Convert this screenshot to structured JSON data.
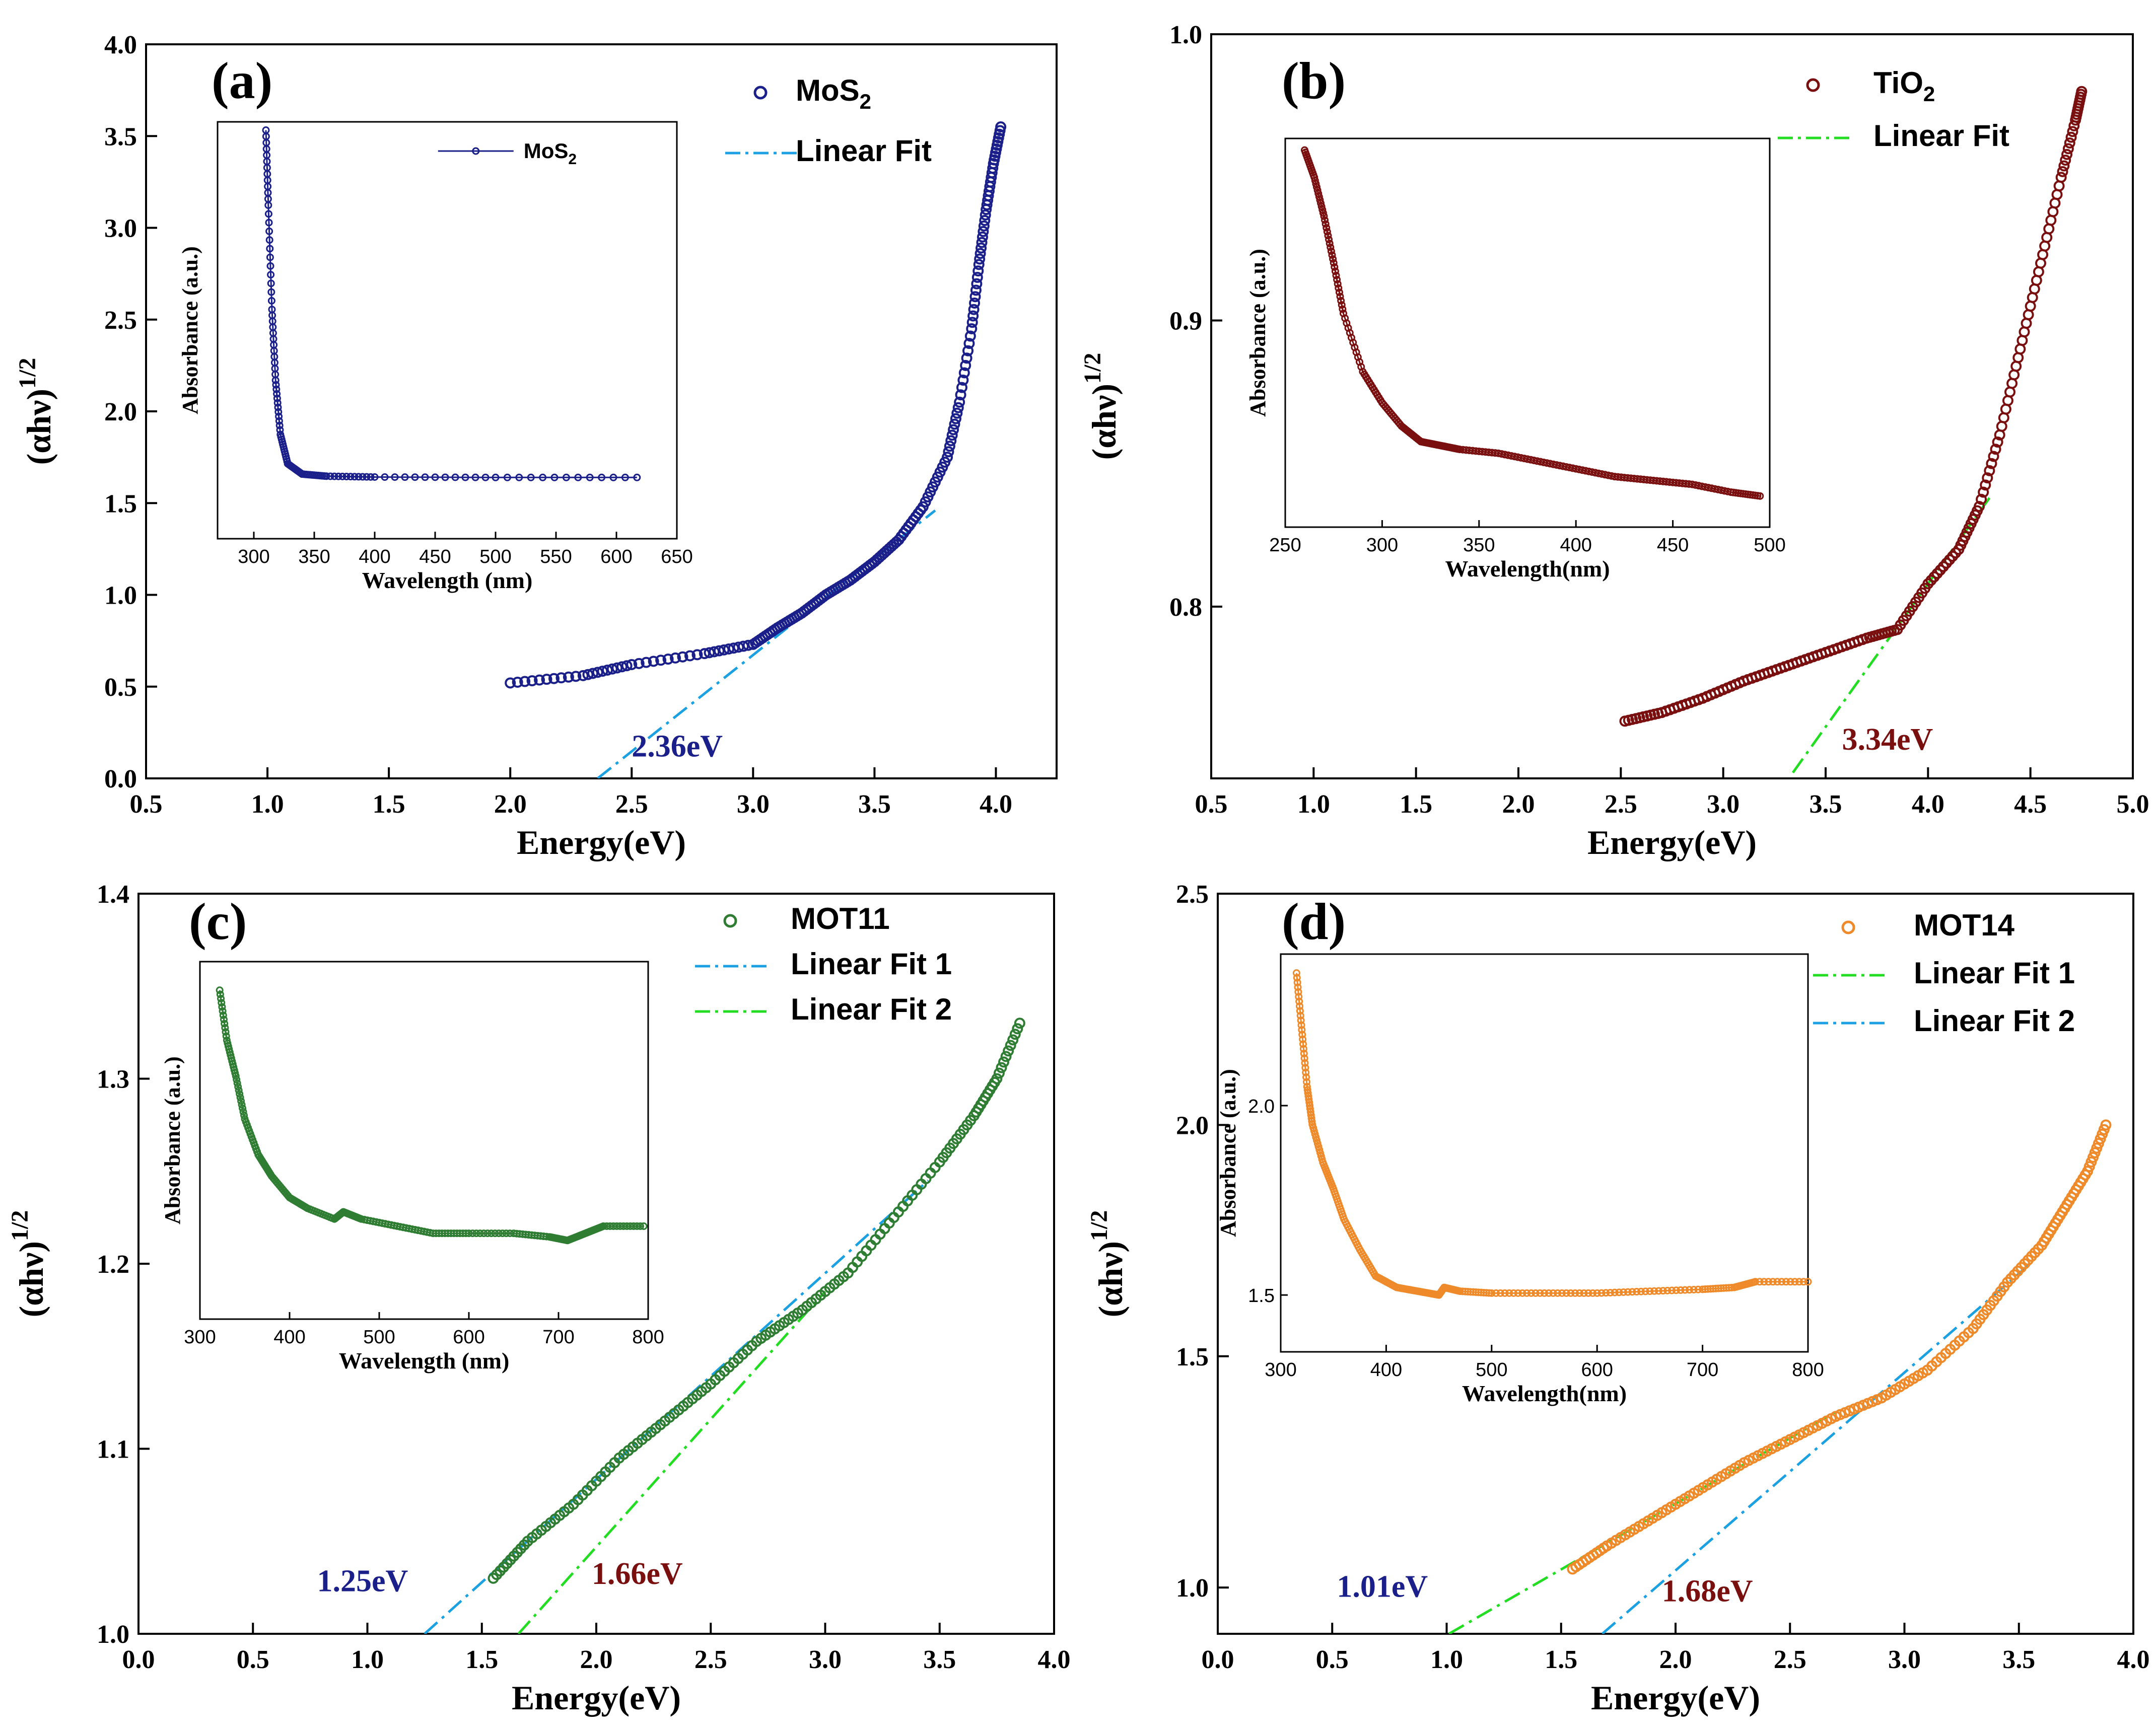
{
  "colors": {
    "mos2": "#1a1f8a",
    "tio2": "#7a0f0f",
    "mot11": "#2e7d32",
    "mot14": "#ef8a2a",
    "fit_blue": "#1ba1e2",
    "fit_green": "#22dd22",
    "annot_blue": "#1a1f8a",
    "annot_red": "#7a0f0f"
  },
  "chart_data": [
    {
      "id": "a",
      "type": "scatter",
      "panel_label": "(a)",
      "xlabel": "Energy(eV)",
      "ylabel_main": "(αhν)",
      "ylabel_sup": "1/2",
      "xlim": [
        0.5,
        4.25
      ],
      "ylim": [
        0.0,
        4.0
      ],
      "xticks": [
        "0.5",
        "1.0",
        "1.5",
        "2.0",
        "2.5",
        "3.0",
        "3.5",
        "4.0"
      ],
      "yticks": [
        "0.0",
        "0.5",
        "1.0",
        "1.5",
        "2.0",
        "2.5",
        "3.0",
        "3.5",
        "4.0"
      ],
      "legend": [
        {
          "label": "MoS",
          "sub": "2",
          "kind": "marker",
          "color": "mos2"
        },
        {
          "label": "Linear Fit",
          "kind": "dashdot",
          "color": "fit_blue"
        }
      ],
      "series": [
        {
          "name": "MoS2",
          "color": "mos2",
          "x": [
            2.0,
            2.3,
            2.5,
            2.8,
            3.0,
            3.1,
            3.2,
            3.3,
            3.4,
            3.5,
            3.6,
            3.7,
            3.8,
            3.85,
            3.9,
            3.93,
            3.96,
            3.99,
            4.02
          ],
          "y": [
            0.52,
            0.56,
            0.62,
            0.68,
            0.73,
            0.82,
            0.9,
            1.0,
            1.08,
            1.18,
            1.3,
            1.48,
            1.75,
            2.05,
            2.45,
            2.8,
            3.1,
            3.35,
            3.55
          ]
        }
      ],
      "fits": [
        {
          "name": "Linear Fit",
          "color": "fit_blue",
          "x": [
            2.36,
            3.75
          ],
          "y": [
            0.0,
            1.46
          ]
        }
      ],
      "annotations": [
        {
          "text": "2.36eV",
          "x": 2.5,
          "y": 0.12,
          "color": "annot_blue"
        }
      ],
      "inset": {
        "xlabel": "Wavelength (nm)",
        "ylabel": "Absorbance (a.u.)",
        "xlim": [
          270,
          650
        ],
        "ylim": [
          0,
          1
        ],
        "xticks": [
          "300",
          "350",
          "400",
          "450",
          "500",
          "550",
          "600",
          "650"
        ],
        "legend": {
          "label": "MoS",
          "sub": "2",
          "color": "mos2"
        },
        "series": {
          "x": [
            310,
            312,
            315,
            318,
            322,
            328,
            340,
            360,
            400,
            500,
            617
          ],
          "y": [
            0.98,
            0.8,
            0.55,
            0.38,
            0.25,
            0.18,
            0.155,
            0.15,
            0.148,
            0.147,
            0.147
          ]
        }
      }
    },
    {
      "id": "b",
      "type": "scatter",
      "panel_label": "(b)",
      "xlabel": "Energy(eV)",
      "ylabel_main": "(αhν)",
      "ylabel_sup": "1/2",
      "xlim": [
        0.5,
        5.0
      ],
      "ylim": [
        0.74,
        1.0
      ],
      "xticks": [
        "0.5",
        "1.0",
        "1.5",
        "2.0",
        "2.5",
        "3.0",
        "3.5",
        "4.0",
        "4.5",
        "5.0"
      ],
      "yticks": [
        "0.8",
        "0.9",
        "1.0"
      ],
      "legend": [
        {
          "label": "TiO",
          "sub": "2",
          "kind": "marker",
          "color": "tio2"
        },
        {
          "label": "Linear Fit",
          "kind": "dashdot",
          "color": "fit_green"
        }
      ],
      "series": [
        {
          "name": "TiO2",
          "color": "tio2",
          "x": [
            2.52,
            2.7,
            2.9,
            3.1,
            3.3,
            3.5,
            3.7,
            3.85,
            4.0,
            4.15,
            4.25,
            4.35,
            4.45,
            4.55,
            4.65,
            4.72,
            4.75
          ],
          "y": [
            0.76,
            0.763,
            0.768,
            0.774,
            0.779,
            0.784,
            0.789,
            0.792,
            0.808,
            0.82,
            0.835,
            0.86,
            0.89,
            0.92,
            0.95,
            0.97,
            0.98
          ]
        }
      ],
      "fits": [
        {
          "name": "Linear Fit",
          "color": "fit_green",
          "x": [
            3.34,
            4.3
          ],
          "y": [
            0.742,
            0.838
          ]
        }
      ],
      "annotations": [
        {
          "text": "3.34eV",
          "x": 3.58,
          "y": 0.75,
          "color": "annot_red"
        }
      ],
      "inset": {
        "xlabel": "Wavelength(nm)",
        "ylabel": "Absorbance (a.u.)",
        "xlim": [
          250,
          500
        ],
        "ylim": [
          0,
          1
        ],
        "xticks": [
          "250",
          "300",
          "350",
          "400",
          "450",
          "500"
        ],
        "legend": null,
        "series": {
          "x": [
            260,
            265,
            270,
            275,
            280,
            290,
            300,
            310,
            320,
            330,
            340,
            360,
            380,
            400,
            420,
            440,
            460,
            480,
            495
          ],
          "y": [
            0.97,
            0.9,
            0.8,
            0.68,
            0.55,
            0.4,
            0.32,
            0.26,
            0.22,
            0.21,
            0.2,
            0.19,
            0.17,
            0.15,
            0.13,
            0.12,
            0.11,
            0.09,
            0.08
          ]
        }
      }
    },
    {
      "id": "c",
      "type": "scatter",
      "panel_label": "(c)",
      "xlabel": "Energy(eV)",
      "ylabel_main": "(αhν)",
      "ylabel_sup": "1/2",
      "xlim": [
        0.0,
        4.0
      ],
      "ylim": [
        1.0,
        1.4
      ],
      "xticks": [
        "0.0",
        "0.5",
        "1.0",
        "1.5",
        "2.0",
        "2.5",
        "3.0",
        "3.5",
        "4.0"
      ],
      "yticks": [
        "1.0",
        "1.1",
        "1.2",
        "1.3",
        "1.4"
      ],
      "legend": [
        {
          "label": "MOT11",
          "kind": "marker",
          "color": "mot11"
        },
        {
          "label": "Linear Fit 1",
          "kind": "dashdot",
          "color": "fit_blue"
        },
        {
          "label": "Linear Fit 2",
          "kind": "dashdot",
          "color": "fit_green"
        }
      ],
      "series": [
        {
          "name": "MOT11",
          "color": "mot11",
          "x": [
            1.55,
            1.7,
            1.9,
            2.1,
            2.3,
            2.5,
            2.7,
            2.9,
            3.1,
            3.3,
            3.5,
            3.65,
            3.75,
            3.85
          ],
          "y": [
            1.03,
            1.05,
            1.07,
            1.095,
            1.115,
            1.135,
            1.158,
            1.175,
            1.195,
            1.225,
            1.255,
            1.28,
            1.3,
            1.33
          ]
        }
      ],
      "fits": [
        {
          "name": "Linear Fit 1",
          "color": "fit_blue",
          "x": [
            1.25,
            3.45
          ],
          "y": [
            1.0,
            1.245
          ]
        },
        {
          "name": "Linear Fit 2",
          "color": "fit_green",
          "x": [
            1.66,
            3.0
          ],
          "y": [
            1.0,
            1.185
          ]
        }
      ],
      "annotations": [
        {
          "text": "1.25eV",
          "x": 0.78,
          "y": 1.023,
          "color": "annot_blue"
        },
        {
          "text": "1.66eV",
          "x": 1.98,
          "y": 1.027,
          "color": "annot_red"
        }
      ],
      "inset": {
        "xlabel": "Wavelength (nm)",
        "ylabel": "Absorbance (a.u.)",
        "xlim": [
          300,
          800
        ],
        "ylim": [
          0,
          1
        ],
        "xticks": [
          "300",
          "400",
          "500",
          "600",
          "700",
          "800"
        ],
        "legend": null,
        "series": {
          "x": [
            322,
            330,
            340,
            350,
            365,
            380,
            400,
            420,
            450,
            460,
            480,
            520,
            560,
            600,
            650,
            690,
            710,
            730,
            750,
            795
          ],
          "y": [
            0.92,
            0.78,
            0.68,
            0.56,
            0.46,
            0.4,
            0.34,
            0.31,
            0.28,
            0.3,
            0.28,
            0.26,
            0.24,
            0.24,
            0.24,
            0.23,
            0.22,
            0.24,
            0.26,
            0.26
          ]
        }
      }
    },
    {
      "id": "d",
      "type": "scatter",
      "panel_label": "(d)",
      "xlabel": "Energy(eV)",
      "ylabel_main": "(αhν)",
      "ylabel_sup": "1/2",
      "xlim": [
        0.0,
        4.0
      ],
      "ylim": [
        0.9,
        2.5
      ],
      "xticks": [
        "0.0",
        "0.5",
        "1.0",
        "1.5",
        "2.0",
        "2.5",
        "3.0",
        "3.5",
        "4.0"
      ],
      "yticks": [
        "1.0",
        "1.5",
        "2.0",
        "2.5"
      ],
      "legend": [
        {
          "label": "MOT14",
          "kind": "marker",
          "color": "mot14"
        },
        {
          "label": "Linear Fit 1",
          "kind": "dashdot",
          "color": "fit_green"
        },
        {
          "label": "Linear Fit 2",
          "kind": "dashdot",
          "color": "fit_blue"
        }
      ],
      "series": [
        {
          "name": "MOT14",
          "color": "mot14",
          "x": [
            1.55,
            1.7,
            1.9,
            2.1,
            2.3,
            2.5,
            2.7,
            2.9,
            3.1,
            3.3,
            3.45,
            3.6,
            3.7,
            3.8,
            3.88
          ],
          "y": [
            1.04,
            1.09,
            1.15,
            1.21,
            1.27,
            1.32,
            1.37,
            1.41,
            1.47,
            1.56,
            1.66,
            1.74,
            1.82,
            1.9,
            2.0
          ]
        }
      ],
      "fits": [
        {
          "name": "Linear Fit 1",
          "color": "fit_green",
          "x": [
            1.01,
            2.7
          ],
          "y": [
            0.9,
            1.38
          ]
        },
        {
          "name": "Linear Fit 2",
          "color": "fit_blue",
          "x": [
            1.68,
            3.55
          ],
          "y": [
            0.9,
            1.7
          ]
        }
      ],
      "annotations": [
        {
          "text": "1.01eV",
          "x": 0.52,
          "y": 0.98,
          "color": "annot_blue"
        },
        {
          "text": "1.68eV",
          "x": 1.94,
          "y": 0.97,
          "color": "annot_red"
        }
      ],
      "inset": {
        "xlabel": "Wavelength(nm)",
        "ylabel": "Absorbance (a.u.)",
        "xlim": [
          300,
          800
        ],
        "ylim": [
          1.35,
          2.4
        ],
        "xticks": [
          "300",
          "400",
          "500",
          "600",
          "700",
          "800"
        ],
        "yticks": [
          "1.5",
          "2.0"
        ],
        "legend": null,
        "series": {
          "x": [
            315,
            320,
            325,
            330,
            340,
            350,
            360,
            375,
            390,
            410,
            430,
            450,
            455,
            470,
            500,
            550,
            600,
            650,
            700,
            730,
            750,
            800
          ],
          "y": [
            2.35,
            2.2,
            2.05,
            1.95,
            1.85,
            1.78,
            1.7,
            1.62,
            1.55,
            1.52,
            1.51,
            1.5,
            1.52,
            1.51,
            1.505,
            1.505,
            1.505,
            1.51,
            1.515,
            1.52,
            1.535,
            1.535
          ]
        }
      }
    }
  ]
}
